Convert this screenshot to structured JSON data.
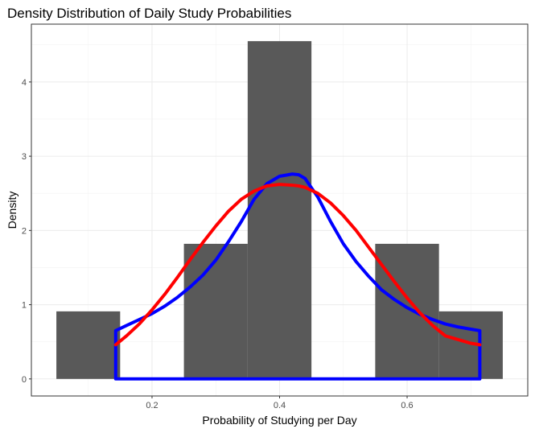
{
  "chart_data": {
    "type": "bar",
    "title": "Density Distribution of Daily Study Probabilities",
    "xlabel": "Probability of Studying per Day",
    "ylabel": "Density",
    "xlim": [
      0.05,
      0.75
    ],
    "ylim": [
      0,
      4.7
    ],
    "x_ticks": [
      0.2,
      0.4,
      0.6
    ],
    "x_tick_labels": [
      "0.2",
      "0.4",
      "0.6"
    ],
    "y_ticks": [
      0,
      1,
      2,
      3,
      4
    ],
    "y_tick_labels": [
      "0",
      "1",
      "2",
      "3",
      "4"
    ],
    "grid": true,
    "bar_color": "#595959",
    "histogram": [
      {
        "x0": 0.05,
        "x1": 0.15,
        "density": 0.91
      },
      {
        "x0": 0.15,
        "x1": 0.25,
        "density": 0
      },
      {
        "x0": 0.25,
        "x1": 0.35,
        "density": 1.82
      },
      {
        "x0": 0.35,
        "x1": 0.45,
        "density": 4.55
      },
      {
        "x0": 0.45,
        "x1": 0.55,
        "density": 0
      },
      {
        "x0": 0.55,
        "x1": 0.65,
        "density": 1.82
      },
      {
        "x0": 0.65,
        "x1": 0.75,
        "density": 0.91
      }
    ],
    "series": [
      {
        "color": "#0000ff",
        "style": "density-closed",
        "x": [
          0.143,
          0.16,
          0.18,
          0.2,
          0.22,
          0.24,
          0.26,
          0.28,
          0.3,
          0.32,
          0.34,
          0.36,
          0.38,
          0.4,
          0.42,
          0.43,
          0.44,
          0.46,
          0.48,
          0.5,
          0.52,
          0.54,
          0.56,
          0.58,
          0.6,
          0.62,
          0.64,
          0.66,
          0.68,
          0.7,
          0.714
        ],
        "y": [
          0.65,
          0.72,
          0.8,
          0.88,
          0.98,
          1.1,
          1.24,
          1.4,
          1.6,
          1.85,
          2.12,
          2.42,
          2.63,
          2.73,
          2.76,
          2.75,
          2.7,
          2.45,
          2.12,
          1.82,
          1.58,
          1.38,
          1.2,
          1.07,
          0.96,
          0.87,
          0.8,
          0.74,
          0.7,
          0.67,
          0.65
        ]
      },
      {
        "color": "#ff0000",
        "style": "line",
        "x": [
          0.143,
          0.16,
          0.18,
          0.2,
          0.22,
          0.24,
          0.26,
          0.28,
          0.3,
          0.32,
          0.34,
          0.36,
          0.38,
          0.4,
          0.42,
          0.43,
          0.44,
          0.46,
          0.48,
          0.5,
          0.52,
          0.54,
          0.56,
          0.58,
          0.6,
          0.62,
          0.64,
          0.66,
          0.68,
          0.7,
          0.714
        ],
        "y": [
          0.46,
          0.58,
          0.74,
          0.93,
          1.14,
          1.37,
          1.61,
          1.84,
          2.06,
          2.26,
          2.42,
          2.53,
          2.6,
          2.62,
          2.61,
          2.6,
          2.58,
          2.5,
          2.37,
          2.2,
          2.0,
          1.77,
          1.54,
          1.31,
          1.09,
          0.89,
          0.72,
          0.58,
          0.53,
          0.48,
          0.46
        ]
      }
    ]
  }
}
